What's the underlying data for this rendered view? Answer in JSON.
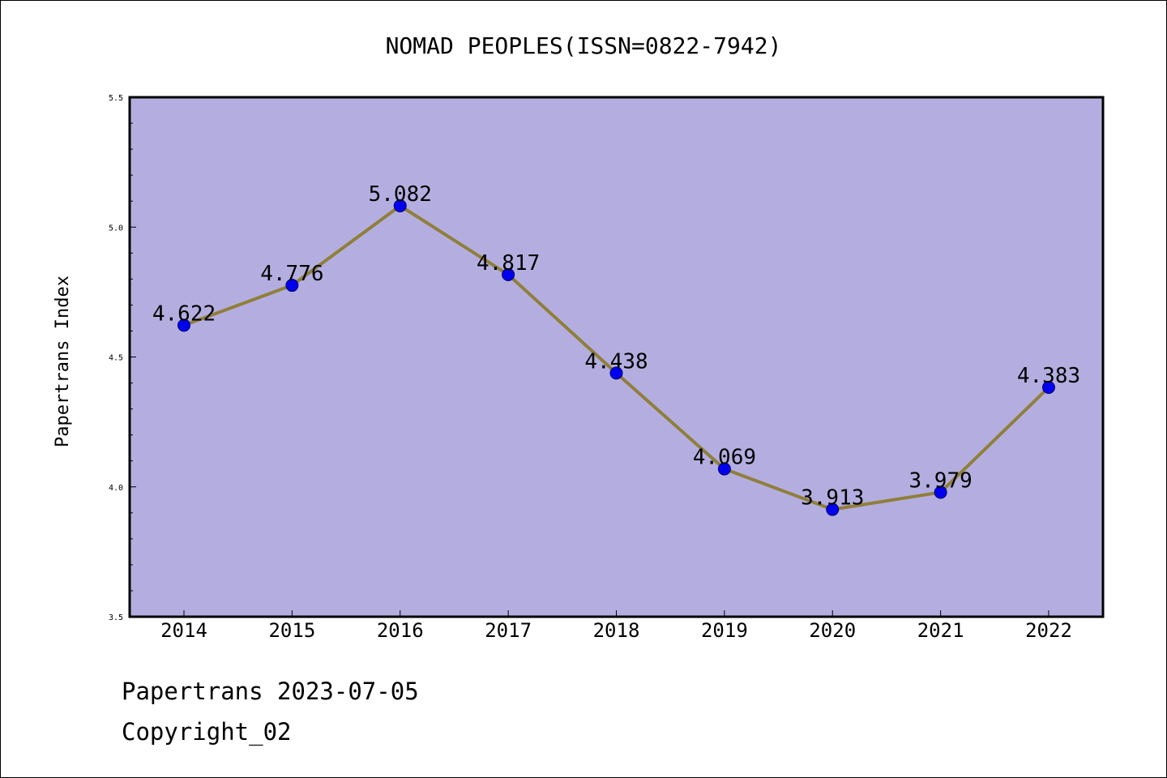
{
  "chart_data": {
    "type": "line",
    "title": "NOMAD PEOPLES(ISSN=0822-7942)",
    "xlabel": "",
    "ylabel": "Papertrans Index",
    "categories": [
      "2014",
      "2015",
      "2016",
      "2017",
      "2018",
      "2019",
      "2020",
      "2021",
      "2022"
    ],
    "values": [
      4.622,
      4.776,
      5.082,
      4.817,
      4.438,
      4.069,
      3.913,
      3.979,
      4.383
    ],
    "data_labels": [
      "4.622",
      "4.776",
      "5.082",
      "4.817",
      "4.438",
      "4.069",
      "3.913",
      "3.979",
      "4.383"
    ],
    "ylim": [
      3.5,
      5.5
    ],
    "yticks": [
      "3.5",
      "4.0",
      "4.5",
      "5.0",
      "5.5"
    ],
    "grid": false,
    "legend": "none",
    "colors": {
      "plot_background": "#b4aee0",
      "line": "#8f7f3a",
      "marker": "#0000ee",
      "marker_edge": "#00006a"
    }
  },
  "footer": {
    "line1": "Papertrans 2023-07-05",
    "line2": "Copyright_02"
  }
}
